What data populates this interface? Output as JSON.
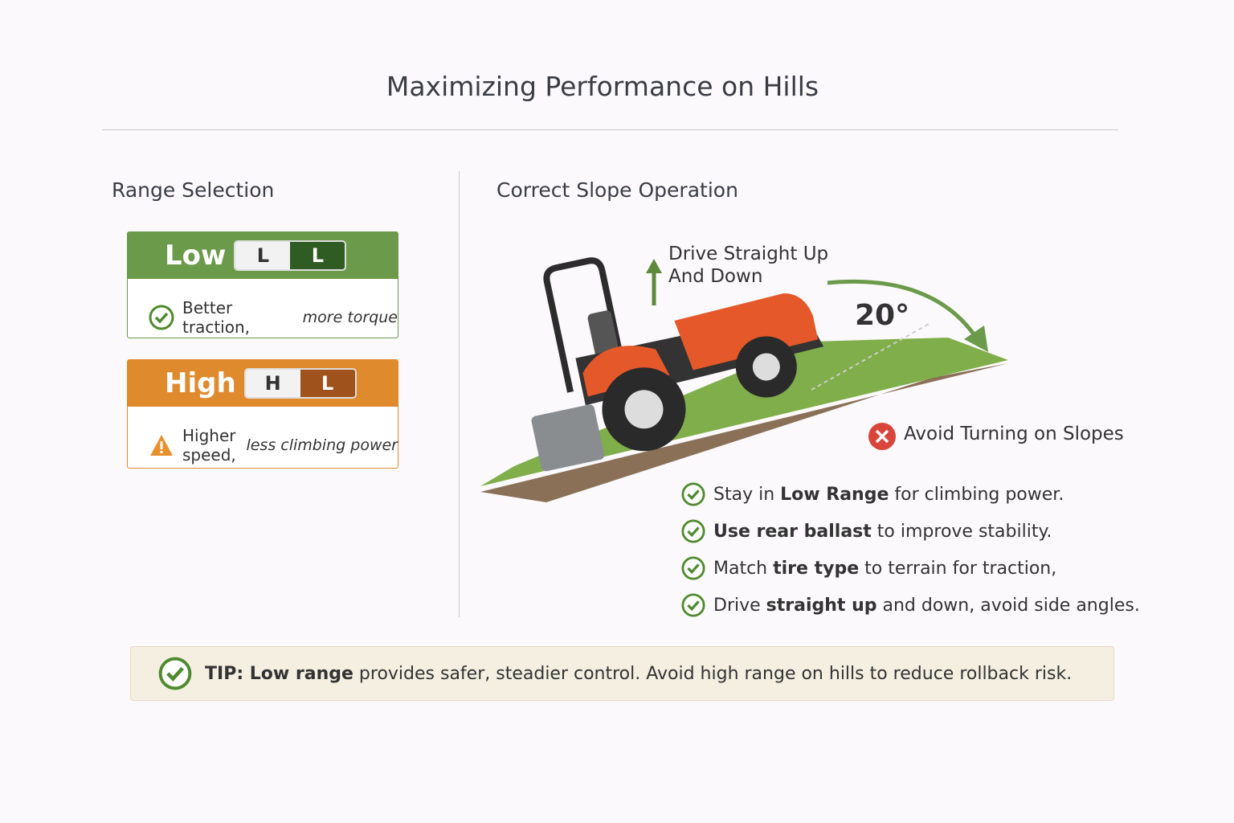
{
  "title": "Maximizing Performance on Hills",
  "left": {
    "heading": "Range Selection",
    "cards": [
      {
        "label": "Low",
        "gear": [
          "L",
          "L"
        ],
        "note": [
          "Better traction,",
          " more torque"
        ]
      },
      {
        "label": "High",
        "gear": [
          "H",
          "L"
        ],
        "note": [
          "Higher speed,",
          " less climbing power"
        ]
      }
    ]
  },
  "right": {
    "heading": "Correct Slope Operation",
    "arrow_label": [
      "Drive Straight Up",
      "And Down"
    ],
    "angle": "20°",
    "warning": "Avoid Turning on Slopes",
    "checklist": [
      [
        {
          "text": "Stay in "
        },
        {
          "text": "Low Range",
          "bold": true
        },
        {
          "text": " for climbing power."
        }
      ],
      [
        {
          "text": "Use rear ballast",
          "bold": true
        },
        {
          "text": " to improve stability."
        }
      ],
      [
        {
          "text": "Match "
        },
        {
          "text": "tire type",
          "bold": true
        },
        {
          "text": " to terrain for traction,"
        }
      ],
      [
        {
          "text": "Drive "
        },
        {
          "text": "straight up",
          "bold": true
        },
        {
          "text": " and down, avoid side angles."
        }
      ]
    ]
  },
  "tip": [
    {
      "text": "TIP: Low range",
      "bold": true
    },
    {
      "text": " provides safer, steadier control. Avoid high range on hills to reduce rollback risk."
    }
  ]
}
